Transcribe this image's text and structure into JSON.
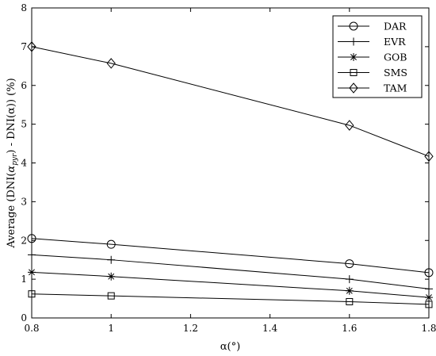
{
  "chart_data": {
    "type": "line",
    "title": "",
    "xlabel": "α(°)",
    "ylabel_parts": [
      "Average (DNI(",
      "α",
      "pyr",
      ") - DNI(α)) (%)"
    ],
    "xlim": [
      0.8,
      1.8
    ],
    "ylim": [
      0,
      8
    ],
    "xticks": [
      0.8,
      1.0,
      1.2,
      1.4,
      1.6,
      1.8
    ],
    "xtick_labels": [
      "0.8",
      "1",
      "1.2",
      "1.4",
      "1.6",
      "1.8"
    ],
    "yticks": [
      0,
      1,
      2,
      3,
      4,
      5,
      6,
      7,
      8
    ],
    "ytick_labels": [
      "0",
      "1",
      "2",
      "3",
      "4",
      "5",
      "6",
      "7",
      "8"
    ],
    "grid": false,
    "legend_position": "top-right",
    "x": [
      0.8,
      1.0,
      1.6,
      1.8
    ],
    "series": [
      {
        "name": "DAR",
        "marker": "circle",
        "values": [
          2.05,
          1.9,
          1.4,
          1.17
        ]
      },
      {
        "name": "EVR",
        "marker": "plus",
        "values": [
          1.63,
          1.5,
          1.0,
          0.75
        ]
      },
      {
        "name": "GOB",
        "marker": "asterisk",
        "values": [
          1.18,
          1.07,
          0.7,
          0.53
        ]
      },
      {
        "name": "SMS",
        "marker": "square",
        "values": [
          0.62,
          0.57,
          0.42,
          0.35
        ]
      },
      {
        "name": "TAM",
        "marker": "diamond",
        "values": [
          7.0,
          6.57,
          4.97,
          4.17
        ]
      }
    ],
    "line_color": "#000000"
  }
}
